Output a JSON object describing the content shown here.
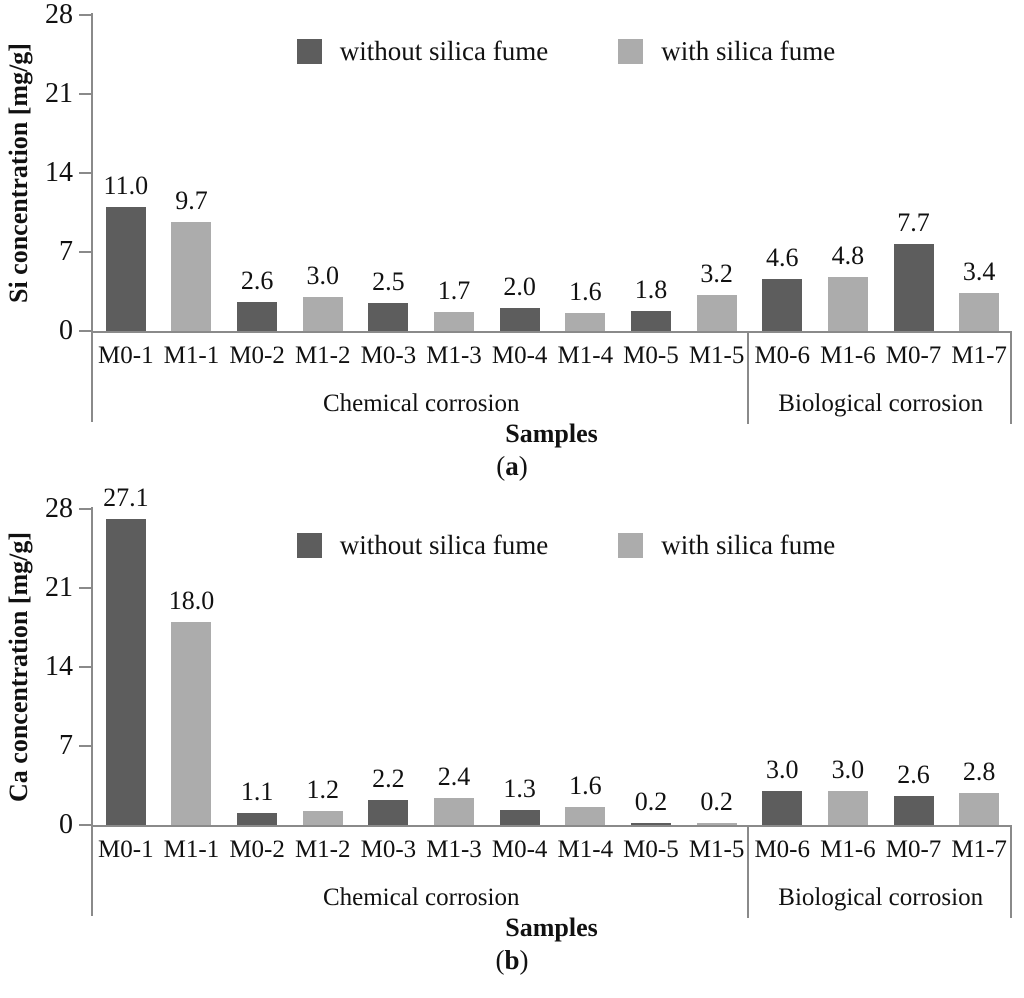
{
  "style": {
    "background": "#ffffff",
    "axis_color": "#8a8a8a",
    "text_color": "#111111",
    "bar_dark": "#5d5d5d",
    "bar_light": "#acacac"
  },
  "chart_data": [
    {
      "type": "bar",
      "panel": "a",
      "title": "",
      "ylabel": "Si concentration [mg/g]",
      "xlabel": "Samples",
      "caption": {
        "open": "(",
        "letter": "a",
        "close": ")"
      },
      "ylim": [
        0,
        28
      ],
      "y_ticks": [
        "0",
        "7",
        "14",
        "21",
        "28"
      ],
      "grid": false,
      "legend_position": "top-center",
      "legend": [
        {
          "name": "without silica fume",
          "color": "#5d5d5d"
        },
        {
          "name": "with silica fume",
          "color": "#acacac"
        }
      ],
      "categories": [
        "M0-1",
        "M1-1",
        "M0-2",
        "M1-2",
        "M0-3",
        "M1-3",
        "M0-4",
        "M1-4",
        "M0-5",
        "M1-5",
        "M0-6",
        "M1-6",
        "M0-7",
        "M1-7"
      ],
      "values": [
        11.0,
        9.7,
        2.6,
        3.0,
        2.5,
        1.7,
        2.0,
        1.6,
        1.8,
        3.2,
        4.6,
        4.8,
        7.7,
        3.4
      ],
      "bar_labels": [
        "11.0",
        "9.7",
        "2.6",
        "3.0",
        "2.5",
        "1.7",
        "2.0",
        "1.6",
        "1.8",
        "3.2",
        "4.6",
        "4.8",
        "7.7",
        "3.4"
      ],
      "groups": [
        {
          "label": "Chemical corrosion",
          "start": 0,
          "span": 10
        },
        {
          "label": "Biological corrosion",
          "start": 10,
          "span": 4
        }
      ]
    },
    {
      "type": "bar",
      "panel": "b",
      "title": "",
      "ylabel": "Ca concentration [mg/g]",
      "xlabel": "Samples",
      "caption": {
        "open": "(",
        "letter": "b",
        "close": ")"
      },
      "ylim": [
        0,
        28
      ],
      "y_ticks": [
        "0",
        "7",
        "14",
        "21",
        "28"
      ],
      "grid": false,
      "legend_position": "top-center",
      "legend": [
        {
          "name": "without silica fume",
          "color": "#5d5d5d"
        },
        {
          "name": "with silica fume",
          "color": "#acacac"
        }
      ],
      "categories": [
        "M0-1",
        "M1-1",
        "M0-2",
        "M1-2",
        "M0-3",
        "M1-3",
        "M0-4",
        "M1-4",
        "M0-5",
        "M1-5",
        "M0-6",
        "M1-6",
        "M0-7",
        "M1-7"
      ],
      "values": [
        27.1,
        18.0,
        1.1,
        1.2,
        2.2,
        2.4,
        1.3,
        1.6,
        0.2,
        0.2,
        3.0,
        3.0,
        2.6,
        2.8
      ],
      "bar_labels": [
        "27.1",
        "18.0",
        "1.1",
        "1.2",
        "2.2",
        "2.4",
        "1.3",
        "1.6",
        "0.2",
        "0.2",
        "3.0",
        "3.0",
        "2.6",
        "2.8"
      ],
      "groups": [
        {
          "label": "Chemical corrosion",
          "start": 0,
          "span": 10
        },
        {
          "label": "Biological corrosion",
          "start": 10,
          "span": 4
        }
      ]
    }
  ]
}
